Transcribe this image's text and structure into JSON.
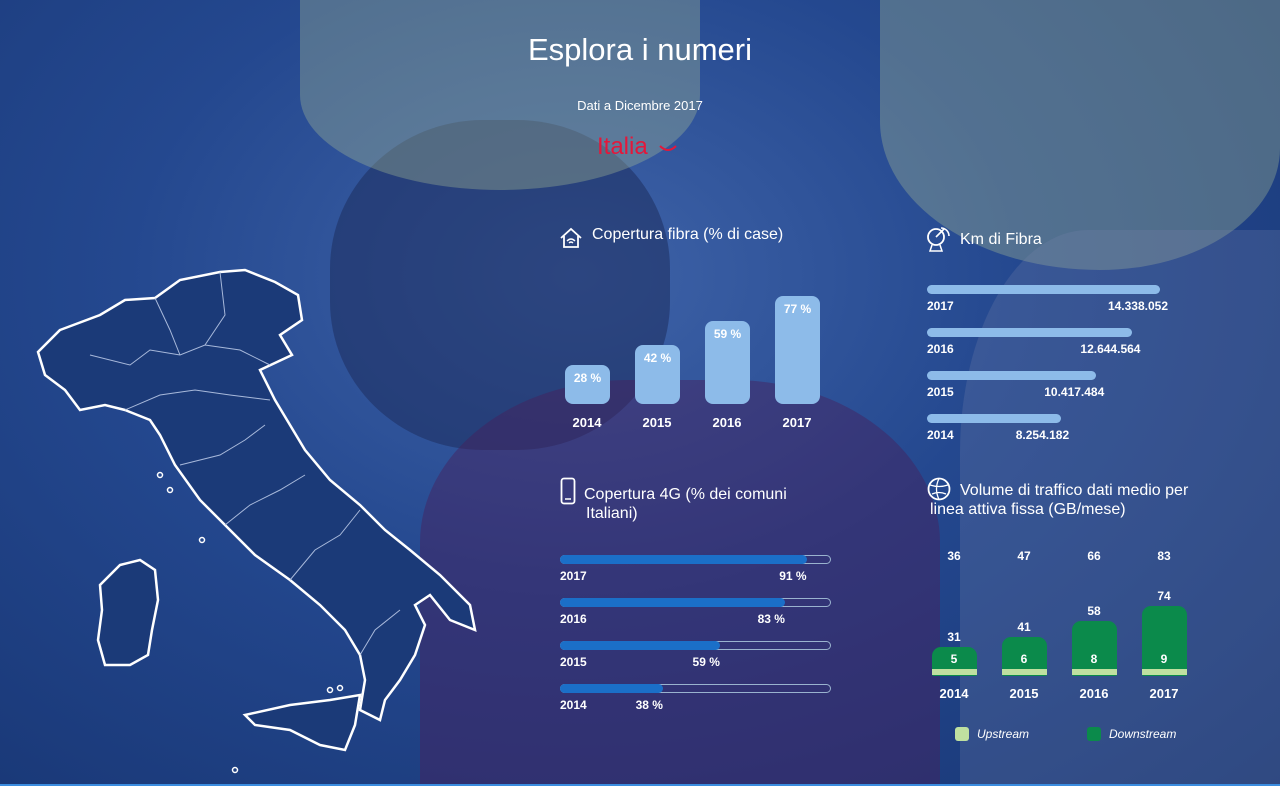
{
  "header": {
    "title": "Esplora i numeri",
    "subtitle": "Dati a Dicembre 2017",
    "region": "Italia",
    "region_icon": "chevron-down-icon"
  },
  "colors": {
    "accent_red": "#e4173a",
    "bar_light_blue": "#8dbbe9",
    "bar_blue": "#1b6fc8",
    "downstream_green": "#0b8a4b",
    "upstream_light_green": "#bfe0a0"
  },
  "sections": {
    "fibra_pct": {
      "title": "Copertura fibra (% di case)",
      "icon": "house-wifi-icon"
    },
    "km_fibra": {
      "title": "Km di Fibra",
      "icon": "satellite-dish-icon"
    },
    "copertura_4g": {
      "title_line1": "Copertura 4G (% dei comuni",
      "title_line2": "Italiani)",
      "icon": "smartphone-icon"
    },
    "traffico": {
      "title_line1": "Volume di traffico dati medio per",
      "title_line2": "linea attiva fissa (GB/mese)",
      "icon": "globe-icon"
    }
  },
  "chart_data": [
    {
      "type": "bar",
      "title": "Copertura fibra (% di case)",
      "categories": [
        "2014",
        "2015",
        "2016",
        "2017"
      ],
      "values": [
        28,
        42,
        59,
        77
      ],
      "labels": [
        "28 %",
        "42 %",
        "59 %",
        "77 %"
      ],
      "ylim": [
        0,
        100
      ]
    },
    {
      "type": "bar",
      "orientation": "horizontal",
      "title": "Km di Fibra",
      "categories": [
        "2017",
        "2016",
        "2015",
        "2014"
      ],
      "values": [
        14338052,
        12644564,
        10417484,
        8254182
      ],
      "labels": [
        "14.338.052",
        "12.644.564",
        "10.417.484",
        "8.254.182"
      ]
    },
    {
      "type": "bar",
      "orientation": "horizontal",
      "title": "Copertura 4G (% dei comuni Italiani)",
      "categories": [
        "2017",
        "2016",
        "2015",
        "2014"
      ],
      "values": [
        91,
        83,
        59,
        38
      ],
      "labels": [
        "91 %",
        "83 %",
        "59 %",
        "38 %"
      ],
      "xlim": [
        0,
        100
      ]
    },
    {
      "type": "bar",
      "stacked": true,
      "title": "Volume di traffico dati medio per linea attiva fissa (GB/mese)",
      "categories": [
        "2014",
        "2015",
        "2016",
        "2017"
      ],
      "totals": [
        36,
        47,
        66,
        83
      ],
      "series": [
        {
          "name": "Upstream",
          "values": [
            5,
            6,
            8,
            9
          ]
        },
        {
          "name": "Downstream",
          "values": [
            31,
            41,
            58,
            74
          ]
        }
      ],
      "legend": [
        "Upstream",
        "Downstream"
      ],
      "legend_position": "bottom"
    }
  ]
}
